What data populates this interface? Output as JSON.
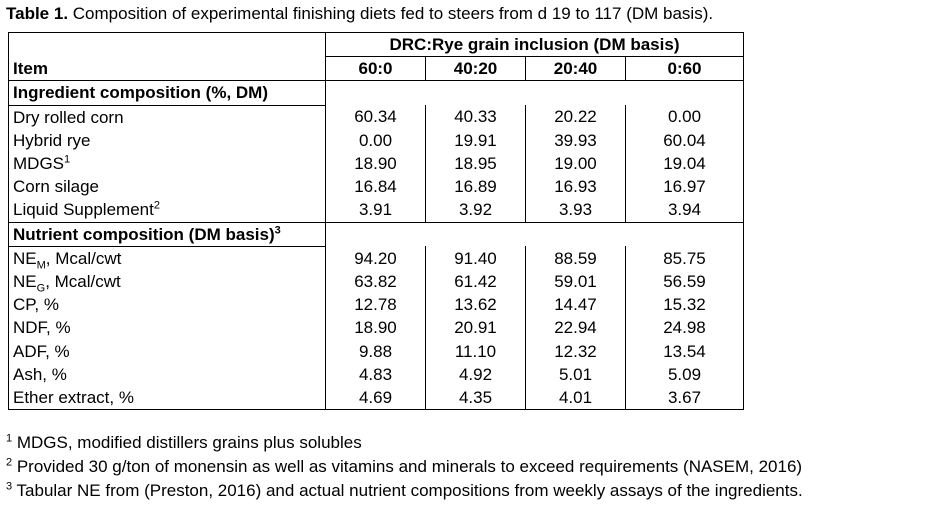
{
  "caption": {
    "label": "Table 1.",
    "text": " Composition of experimental finishing diets fed to steers from d 19 to 117 (DM basis)."
  },
  "header": {
    "span_title": "DRC:Rye grain inclusion (DM basis)",
    "item_label": "Item",
    "columns": [
      "60:0",
      "40:20",
      "20:40",
      "0:60"
    ]
  },
  "sections": [
    {
      "title": "Ingredient composition (%, DM)",
      "title_sup": "",
      "rows": [
        {
          "label": "Dry rolled corn",
          "sup": "",
          "values": [
            "60.34",
            "40.33",
            "20.22",
            "0.00"
          ]
        },
        {
          "label": "Hybrid rye",
          "sup": "",
          "values": [
            "0.00",
            "19.91",
            "39.93",
            "60.04"
          ]
        },
        {
          "label": "MDGS",
          "sup": "1",
          "values": [
            "18.90",
            "18.95",
            "19.00",
            "19.04"
          ]
        },
        {
          "label": "Corn silage",
          "sup": "",
          "values": [
            "16.84",
            "16.89",
            "16.93",
            "16.97"
          ]
        },
        {
          "label": "Liquid Supplement",
          "sup": "2",
          "values": [
            "3.91",
            "3.92",
            "3.93",
            "3.94"
          ]
        }
      ]
    },
    {
      "title": "Nutrient composition (DM basis)",
      "title_sup": "3",
      "rows": [
        {
          "label_pre": "NE",
          "label_sub": "M",
          "label_post": ", Mcal/cwt",
          "values": [
            "94.20",
            "91.40",
            "88.59",
            "85.75"
          ]
        },
        {
          "label_pre": "NE",
          "label_sub": "G",
          "label_post": ", Mcal/cwt",
          "values": [
            "63.82",
            "61.42",
            "59.01",
            "56.59"
          ]
        },
        {
          "label": "CP, %",
          "sup": "",
          "values": [
            "12.78",
            "13.62",
            "14.47",
            "15.32"
          ]
        },
        {
          "label": "NDF, %",
          "sup": "",
          "values": [
            "18.90",
            "20.91",
            "22.94",
            "24.98"
          ]
        },
        {
          "label": "ADF, %",
          "sup": "",
          "values": [
            "9.88",
            "11.10",
            "12.32",
            "13.54"
          ]
        },
        {
          "label": "Ash, %",
          "sup": "",
          "values": [
            "4.83",
            "4.92",
            "5.01",
            "5.09"
          ]
        },
        {
          "label": "Ether extract, %",
          "sup": "",
          "values": [
            "4.69",
            "4.35",
            "4.01",
            "3.67"
          ]
        }
      ]
    }
  ],
  "footnotes": [
    {
      "mark": "1",
      "text": " MDGS, modified distillers grains plus solubles"
    },
    {
      "mark": "2",
      "text": " Provided 30 g/ton of monensin as well as vitamins and minerals to exceed requirements (NASEM, 2016)"
    },
    {
      "mark": "3",
      "text": " Tabular NE from (Preston, 2016) and actual nutrient compositions from weekly assays of the ingredients."
    }
  ]
}
